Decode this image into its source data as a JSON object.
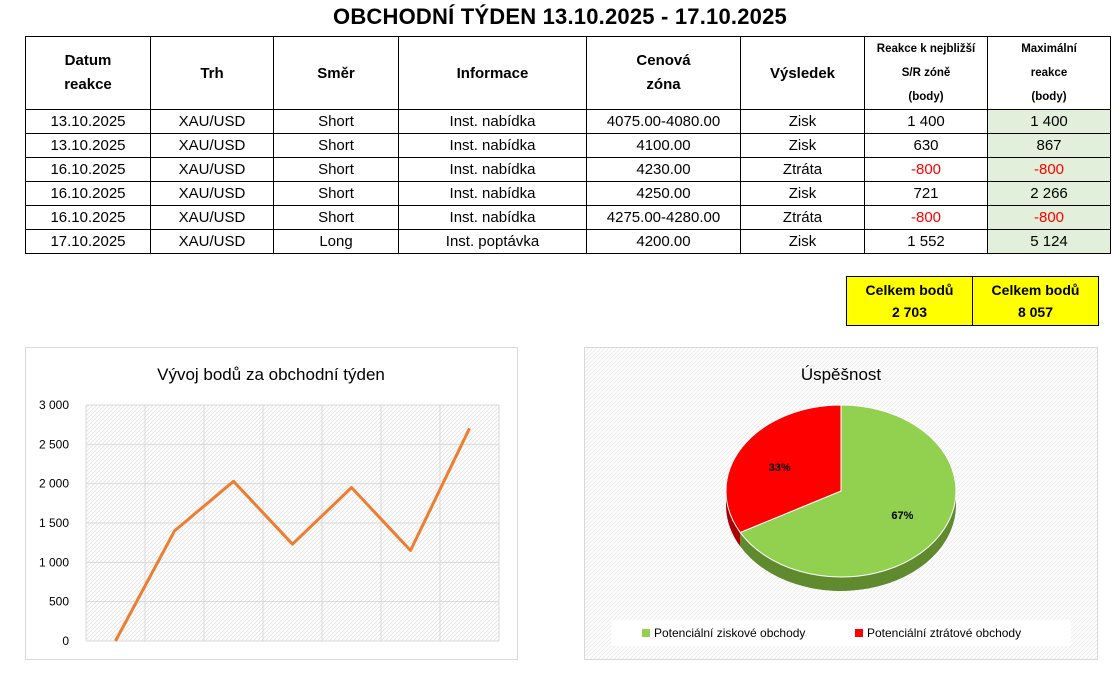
{
  "title": "OBCHODNÍ TÝDEN 13.10.2025 - 17.10.2025",
  "table": {
    "headers": {
      "date": "Datum reakce",
      "market": "Trh",
      "direction": "Směr",
      "info": "Informace",
      "price": "Cenová zóna",
      "result": "Výsledek",
      "reaction_l1": "Reakce k nejbližší",
      "reaction_l2": "S/R zóně",
      "reaction_l3": "(body)",
      "max_l1": "Maximální",
      "max_l2": "reakce",
      "max_l3": "(body)"
    },
    "rows": [
      {
        "date": "13.10.2025",
        "market": "XAU/USD",
        "direction": "Short",
        "info": "Inst. nabídka",
        "price": "4075.00-4080.00",
        "result": "Zisk",
        "reaction": "1 400",
        "max": "1 400"
      },
      {
        "date": "13.10.2025",
        "market": "XAU/USD",
        "direction": "Short",
        "info": "Inst. nabídka",
        "price": "4100.00",
        "result": "Zisk",
        "reaction": "630",
        "max": "867"
      },
      {
        "date": "16.10.2025",
        "market": "XAU/USD",
        "direction": "Short",
        "info": "Inst. nabídka",
        "price": "4230.00",
        "result": "Ztráta",
        "reaction": "-800",
        "max": "-800"
      },
      {
        "date": "16.10.2025",
        "market": "XAU/USD",
        "direction": "Short",
        "info": "Inst. nabídka",
        "price": "4250.00",
        "result": "Zisk",
        "reaction": "721",
        "max": "2 266"
      },
      {
        "date": "16.10.2025",
        "market": "XAU/USD",
        "direction": "Short",
        "info": "Inst. nabídka",
        "price": "4275.00-4280.00",
        "result": "Ztráta",
        "reaction": "-800",
        "max": "-800"
      },
      {
        "date": "17.10.2025",
        "market": "XAU/USD",
        "direction": "Long",
        "info": "Inst. poptávka",
        "price": "4200.00",
        "result": "Zisk",
        "reaction": "1 552",
        "max": "5 124"
      }
    ]
  },
  "totals": {
    "label1": "Celkem bodů",
    "value1": "2 703",
    "label2": "Celkem bodů",
    "value2": "8 057"
  },
  "colors": {
    "line": "#ed7d31",
    "pie_win": "#92d050",
    "pie_win_side": "#5f8a2e",
    "pie_loss": "#ff0000",
    "pie_loss_side": "#a80000",
    "max_column_fill": "#e2efda",
    "totals_fill": "#ffff00",
    "negative_text": "#ff0000"
  },
  "chart_data": [
    {
      "type": "line",
      "title": "Vývoj bodů za obchodní týden",
      "x": [
        0,
        1,
        2,
        3,
        4,
        5,
        6
      ],
      "series": [
        {
          "values": [
            0,
            1400,
            2030,
            1230,
            1951,
            1151,
            2703
          ]
        }
      ],
      "ylim": [
        0,
        3000
      ],
      "yticks": [
        "0",
        "500",
        "1 000",
        "1 500",
        "2 000",
        "2 500",
        "3 000"
      ],
      "grid": true
    },
    {
      "type": "pie",
      "title": "Úspěšnost",
      "labels": [
        "Potenciální ziskové obchody",
        "Potenciální ztrátové obchody"
      ],
      "values": [
        67,
        33
      ],
      "value_labels": [
        "67%",
        "33%"
      ],
      "legend": "bottom"
    }
  ]
}
